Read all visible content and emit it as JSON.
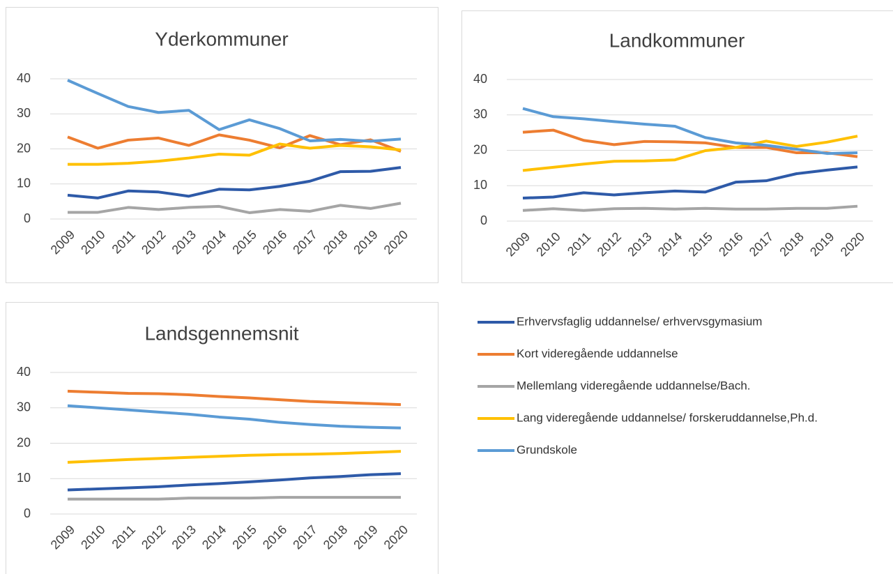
{
  "chart_data": [
    {
      "type": "line",
      "title": "Yderkommuner",
      "categories": [
        "2009",
        "2010",
        "2011",
        "2012",
        "2013",
        "2014",
        "2015",
        "2016",
        "2017",
        "2018",
        "2019",
        "2020"
      ],
      "ylim": [
        0,
        40
      ],
      "yticks": [
        0,
        10,
        20,
        30,
        40
      ],
      "grid": true,
      "series": [
        {
          "color": "#2e5aa8",
          "values": [
            6.8,
            6,
            8,
            7.7,
            6.5,
            8.5,
            8.3,
            9.3,
            10.8,
            13.5,
            13.6,
            14.7
          ]
        },
        {
          "color": "#ed7d31",
          "values": [
            23.4,
            20.2,
            22.5,
            23.1,
            21,
            24,
            22.5,
            20.3,
            23.8,
            21.2,
            22.6,
            19.3
          ]
        },
        {
          "color": "#a5a5a5",
          "values": [
            1.9,
            1.9,
            3.3,
            2.7,
            3.3,
            3.6,
            1.8,
            2.7,
            2.2,
            3.9,
            3.0,
            4.5
          ]
        },
        {
          "color": "#ffc000",
          "values": [
            15.6,
            15.6,
            15.9,
            16.5,
            17.4,
            18.5,
            18.2,
            21.4,
            20.2,
            21,
            20.6,
            19.7
          ]
        },
        {
          "color": "#5b9bd5",
          "values": [
            39.6,
            35.8,
            32.1,
            30.4,
            31,
            25.5,
            28.3,
            25.8,
            22.3,
            22.7,
            22.2,
            22.8
          ]
        }
      ]
    },
    {
      "type": "line",
      "title": "Landkommuner",
      "categories": [
        "2009",
        "2010",
        "2011",
        "2012",
        "2013",
        "2014",
        "2015",
        "2016",
        "2017",
        "2018",
        "2019",
        "2020"
      ],
      "ylim": [
        0,
        40
      ],
      "yticks": [
        0,
        10,
        20,
        30,
        40
      ],
      "grid": true,
      "series": [
        {
          "color": "#2e5aa8",
          "values": [
            6.5,
            6.8,
            8,
            7.4,
            8,
            8.5,
            8.2,
            11,
            11.4,
            13.4,
            14.4,
            15.3
          ]
        },
        {
          "color": "#ed7d31",
          "values": [
            25.1,
            25.7,
            22.8,
            21.6,
            22.5,
            22.4,
            22.1,
            20.8,
            20.8,
            19.3,
            19.3,
            18.2
          ]
        },
        {
          "color": "#a5a5a5",
          "values": [
            3.0,
            3.5,
            3.0,
            3.5,
            3.6,
            3.4,
            3.6,
            3.4,
            3.4,
            3.6,
            3.6,
            4.2
          ]
        },
        {
          "color": "#ffc000",
          "values": [
            14.3,
            15.2,
            16.1,
            16.9,
            17.0,
            17.3,
            19.9,
            20.8,
            22.6,
            21.1,
            22.3,
            24.0
          ]
        },
        {
          "color": "#5b9bd5",
          "values": [
            31.8,
            29.5,
            28.9,
            28.1,
            27.4,
            26.8,
            23.6,
            22.1,
            21.4,
            20.3,
            19.1,
            19.3
          ]
        }
      ]
    },
    {
      "type": "line",
      "title": "Landsgennemsnit",
      "categories": [
        "2009",
        "2010",
        "2011",
        "2012",
        "2013",
        "2014",
        "2015",
        "2016",
        "2017",
        "2018",
        "2019",
        "2020"
      ],
      "ylim": [
        0,
        40
      ],
      "yticks": [
        0,
        10,
        20,
        30,
        40
      ],
      "grid": true,
      "series": [
        {
          "color": "#2e5aa8",
          "values": [
            6.8,
            7.1,
            7.4,
            7.7,
            8.2,
            8.6,
            9.1,
            9.6,
            10.2,
            10.6,
            11.1,
            11.4
          ]
        },
        {
          "color": "#ed7d31",
          "values": [
            34.7,
            34.4,
            34.1,
            34.0,
            33.7,
            33.2,
            32.8,
            32.3,
            31.8,
            31.5,
            31.2,
            30.9
          ]
        },
        {
          "color": "#a5a5a5",
          "values": [
            4.2,
            4.2,
            4.2,
            4.2,
            4.5,
            4.5,
            4.5,
            4.7,
            4.7,
            4.7,
            4.7,
            4.7
          ]
        },
        {
          "color": "#ffc000",
          "values": [
            14.6,
            15.0,
            15.4,
            15.7,
            16.0,
            16.3,
            16.6,
            16.8,
            16.9,
            17.1,
            17.4,
            17.7
          ]
        },
        {
          "color": "#5b9bd5",
          "values": [
            30.6,
            30.0,
            29.4,
            28.8,
            28.2,
            27.4,
            26.8,
            25.9,
            25.3,
            24.8,
            24.5,
            24.3
          ]
        }
      ]
    }
  ],
  "legend": [
    {
      "name": "Erhvervsfaglig uddannelse/ erhvervsgymasium",
      "color": "#2e5aa8"
    },
    {
      "name": "Kort videregående uddannelse",
      "color": "#ed7d31"
    },
    {
      "name": "Mellemlang videregående uddannelse/Bach.",
      "color": "#a5a5a5"
    },
    {
      "name": "Lang videregående uddannelse/ forskeruddannelse,Ph.d.",
      "color": "#ffc000"
    },
    {
      "name": "Grundskole",
      "color": "#5b9bd5"
    }
  ]
}
